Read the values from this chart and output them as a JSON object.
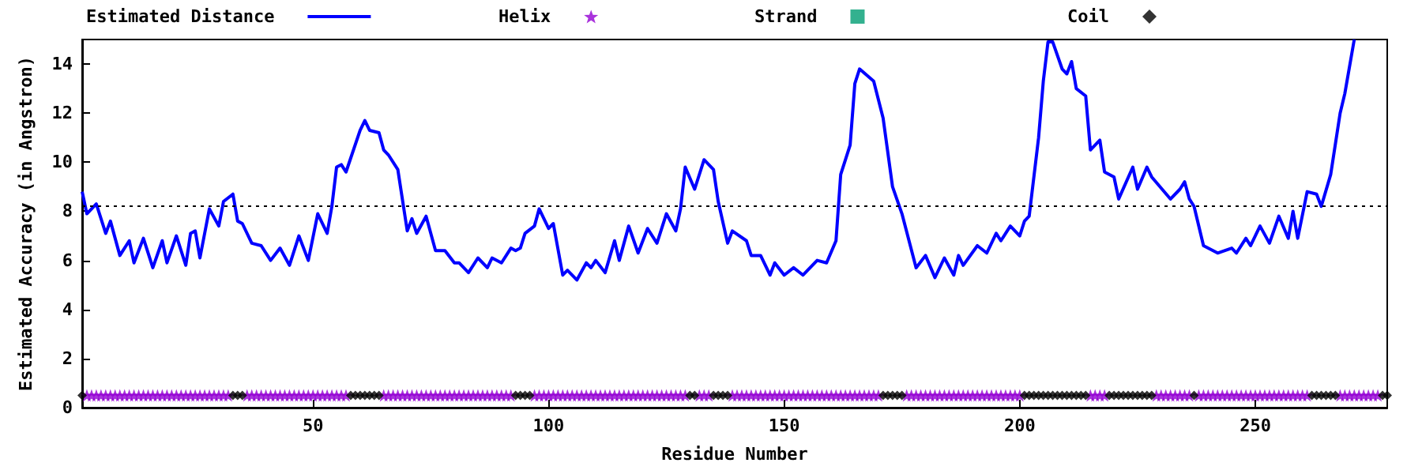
{
  "chart_data": {
    "type": "line",
    "xlabel": "Residue Number",
    "ylabel": "Estimated Accuracy (in Angstron)",
    "xlim": [
      1,
      278
    ],
    "xticks": [
      50,
      100,
      150,
      200,
      250
    ],
    "ylim": [
      0,
      15
    ],
    "yticks": [
      0,
      2,
      4,
      6,
      8,
      10,
      12,
      14
    ],
    "grid": false,
    "legend": "top",
    "marker": "none",
    "ref_lines": [
      {
        "axis": "y",
        "value": 8.2,
        "color": "#000000",
        "line_style": "dotted"
      }
    ],
    "series": [
      {
        "name": "Estimated Distance",
        "color": "#0000ff",
        "line_style": "solid",
        "x": [
          1,
          2,
          4,
          6,
          7,
          9,
          11,
          12,
          14,
          16,
          18,
          19,
          21,
          23,
          24,
          25,
          26,
          28,
          30,
          31,
          33,
          34,
          35,
          37,
          39,
          41,
          43,
          45,
          47,
          49,
          51,
          53,
          54,
          55,
          56,
          57,
          60,
          61,
          62,
          64,
          65,
          66,
          68,
          70,
          71,
          72,
          74,
          76,
          78,
          80,
          81,
          83,
          85,
          87,
          88,
          90,
          92,
          93,
          94,
          95,
          97,
          98,
          100,
          101,
          103,
          104,
          106,
          108,
          109,
          110,
          112,
          114,
          115,
          117,
          119,
          121,
          123,
          125,
          127,
          128,
          129,
          131,
          133,
          135,
          136,
          138,
          139,
          142,
          143,
          145,
          147,
          148,
          150,
          152,
          154,
          157,
          159,
          161,
          162,
          164,
          165,
          166,
          169,
          171,
          173,
          175,
          178,
          180,
          182,
          184,
          186,
          187,
          188,
          191,
          193,
          195,
          196,
          198,
          200,
          201,
          202,
          204,
          205,
          206,
          207,
          209,
          210,
          211,
          212,
          214,
          215,
          217,
          218,
          220,
          221,
          224,
          225,
          227,
          228,
          232,
          234,
          235,
          236,
          237,
          239,
          242,
          245,
          246,
          248,
          249,
          251,
          253,
          255,
          257,
          258,
          259,
          261,
          263,
          264,
          266,
          268,
          269,
          271
        ],
        "values": [
          8.8,
          7.9,
          8.3,
          7.1,
          7.6,
          6.2,
          6.8,
          5.9,
          6.9,
          5.7,
          6.8,
          5.9,
          7.0,
          5.8,
          7.1,
          7.2,
          6.1,
          8.1,
          7.4,
          8.4,
          8.7,
          7.6,
          7.5,
          6.7,
          6.6,
          6.0,
          6.5,
          5.8,
          7.0,
          6.0,
          7.9,
          7.1,
          8.2,
          9.8,
          9.9,
          9.6,
          11.3,
          11.7,
          11.3,
          11.2,
          10.5,
          10.3,
          9.7,
          7.2,
          7.7,
          7.1,
          7.8,
          6.4,
          6.4,
          5.9,
          5.9,
          5.5,
          6.1,
          5.7,
          6.1,
          5.9,
          6.5,
          6.4,
          6.5,
          7.1,
          7.4,
          8.1,
          7.3,
          7.5,
          5.4,
          5.6,
          5.2,
          5.9,
          5.7,
          6.0,
          5.5,
          6.8,
          6.0,
          7.4,
          6.3,
          7.3,
          6.7,
          7.9,
          7.2,
          8.1,
          9.8,
          8.9,
          10.1,
          9.7,
          8.4,
          6.7,
          7.2,
          6.8,
          6.2,
          6.2,
          5.4,
          5.9,
          5.4,
          5.7,
          5.4,
          6.0,
          5.9,
          6.8,
          9.5,
          10.7,
          13.2,
          13.8,
          13.3,
          11.8,
          9.0,
          7.9,
          5.7,
          6.2,
          5.3,
          6.1,
          5.4,
          6.2,
          5.8,
          6.6,
          6.3,
          7.1,
          6.8,
          7.4,
          7.0,
          7.6,
          7.8,
          11.0,
          13.3,
          14.9,
          14.9,
          13.8,
          13.6,
          14.1,
          13.0,
          12.7,
          10.5,
          10.9,
          9.6,
          9.4,
          8.5,
          9.8,
          8.9,
          9.8,
          9.4,
          8.5,
          8.9,
          9.2,
          8.5,
          8.2,
          6.6,
          6.3,
          6.5,
          6.3,
          6.9,
          6.6,
          7.4,
          6.7,
          7.8,
          6.9,
          8.0,
          6.9,
          8.8,
          8.7,
          8.2,
          9.5,
          12.0,
          12.8,
          15.0
        ]
      },
      {
        "name": "Helix",
        "type": "scatter",
        "color": "#9400d3",
        "marker": "star",
        "x": [
          2,
          3,
          4,
          5,
          6,
          7,
          8,
          9,
          10,
          11,
          12,
          13,
          14,
          15,
          16,
          17,
          18,
          19,
          20,
          21,
          22,
          23,
          24,
          25,
          26,
          27,
          28,
          29,
          30,
          31,
          32,
          36,
          37,
          38,
          39,
          40,
          41,
          42,
          43,
          44,
          45,
          46,
          47,
          48,
          49,
          50,
          51,
          52,
          53,
          54,
          55,
          56,
          57,
          65,
          66,
          67,
          68,
          69,
          70,
          71,
          72,
          73,
          74,
          75,
          76,
          77,
          78,
          79,
          80,
          81,
          82,
          83,
          84,
          85,
          86,
          87,
          88,
          89,
          90,
          91,
          92,
          97,
          98,
          99,
          100,
          101,
          102,
          103,
          104,
          105,
          106,
          107,
          108,
          109,
          110,
          111,
          112,
          113,
          114,
          115,
          116,
          117,
          118,
          119,
          120,
          121,
          122,
          123,
          124,
          125,
          126,
          127,
          128,
          129,
          132,
          133,
          134,
          139,
          140,
          141,
          142,
          143,
          144,
          145,
          146,
          147,
          148,
          149,
          150,
          151,
          152,
          153,
          154,
          155,
          156,
          157,
          158,
          159,
          160,
          161,
          162,
          163,
          164,
          165,
          166,
          167,
          168,
          169,
          170,
          176,
          177,
          178,
          179,
          180,
          181,
          182,
          183,
          184,
          185,
          186,
          187,
          188,
          189,
          190,
          191,
          192,
          193,
          194,
          195,
          196,
          197,
          198,
          199,
          200,
          215,
          216,
          217,
          218,
          229,
          230,
          231,
          232,
          233,
          234,
          235,
          236,
          238,
          239,
          240,
          241,
          242,
          243,
          244,
          245,
          246,
          247,
          248,
          249,
          250,
          251,
          252,
          253,
          254,
          255,
          256,
          257,
          258,
          259,
          260,
          261,
          268,
          269,
          270,
          271,
          272,
          273,
          274,
          275,
          276
        ],
        "values": [
          0.5,
          0.5,
          0.5,
          0.5,
          0.5,
          0.5,
          0.5,
          0.5,
          0.5,
          0.5,
          0.5,
          0.5,
          0.5,
          0.5,
          0.5,
          0.5,
          0.5,
          0.5,
          0.5,
          0.5,
          0.5,
          0.5,
          0.5,
          0.5,
          0.5,
          0.5,
          0.5,
          0.5,
          0.5,
          0.5,
          0.5,
          0.5,
          0.5,
          0.5,
          0.5,
          0.5,
          0.5,
          0.5,
          0.5,
          0.5,
          0.5,
          0.5,
          0.5,
          0.5,
          0.5,
          0.5,
          0.5,
          0.5,
          0.5,
          0.5,
          0.5,
          0.5,
          0.5,
          0.5,
          0.5,
          0.5,
          0.5,
          0.5,
          0.5,
          0.5,
          0.5,
          0.5,
          0.5,
          0.5,
          0.5,
          0.5,
          0.5,
          0.5,
          0.5,
          0.5,
          0.5,
          0.5,
          0.5,
          0.5,
          0.5,
          0.5,
          0.5,
          0.5,
          0.5,
          0.5,
          0.5,
          0.5,
          0.5,
          0.5,
          0.5,
          0.5,
          0.5,
          0.5,
          0.5,
          0.5,
          0.5,
          0.5,
          0.5,
          0.5,
          0.5,
          0.5,
          0.5,
          0.5,
          0.5,
          0.5,
          0.5,
          0.5,
          0.5,
          0.5,
          0.5,
          0.5,
          0.5,
          0.5,
          0.5,
          0.5,
          0.5,
          0.5,
          0.5,
          0.5,
          0.5,
          0.5,
          0.5,
          0.5,
          0.5,
          0.5,
          0.5,
          0.5,
          0.5,
          0.5,
          0.5,
          0.5,
          0.5,
          0.5,
          0.5,
          0.5,
          0.5,
          0.5,
          0.5,
          0.5,
          0.5,
          0.5,
          0.5,
          0.5,
          0.5,
          0.5,
          0.5,
          0.5,
          0.5,
          0.5,
          0.5,
          0.5,
          0.5,
          0.5,
          0.5,
          0.5,
          0.5,
          0.5,
          0.5,
          0.5,
          0.5,
          0.5,
          0.5,
          0.5,
          0.5,
          0.5,
          0.5,
          0.5,
          0.5,
          0.5,
          0.5,
          0.5,
          0.5,
          0.5,
          0.5,
          0.5,
          0.5,
          0.5,
          0.5,
          0.5,
          0.5,
          0.5,
          0.5,
          0.5,
          0.5,
          0.5,
          0.5,
          0.5,
          0.5,
          0.5,
          0.5,
          0.5,
          0.5,
          0.5,
          0.5,
          0.5,
          0.5,
          0.5,
          0.5,
          0.5,
          0.5,
          0.5,
          0.5,
          0.5,
          0.5,
          0.5,
          0.5,
          0.5,
          0.5,
          0.5,
          0.5,
          0.5,
          0.5,
          0.5,
          0.5,
          0.5,
          0.5,
          0.5,
          0.5,
          0.5,
          0.5,
          0.5,
          0.5,
          0.5,
          0.5
        ]
      },
      {
        "name": "Strand",
        "type": "scatter",
        "color": "#009e73",
        "marker": "square"
      },
      {
        "name": "Coil",
        "type": "scatter",
        "color": "#000000",
        "marker": "diamond",
        "x": [
          1,
          33,
          34,
          35,
          58,
          59,
          60,
          61,
          62,
          63,
          64,
          93,
          94,
          95,
          96,
          130,
          131,
          135,
          136,
          137,
          138,
          171,
          172,
          173,
          174,
          175,
          201,
          202,
          203,
          204,
          205,
          206,
          207,
          208,
          209,
          210,
          211,
          212,
          213,
          214,
          219,
          220,
          221,
          222,
          223,
          224,
          225,
          226,
          227,
          228,
          237,
          262,
          263,
          264,
          265,
          266,
          267,
          277,
          278
        ],
        "values": [
          0.5,
          0.5,
          0.5,
          0.5,
          0.5,
          0.5,
          0.5,
          0.5,
          0.5,
          0.5,
          0.5,
          0.5,
          0.5,
          0.5,
          0.5,
          0.5,
          0.5,
          0.5,
          0.5,
          0.5,
          0.5,
          0.5,
          0.5,
          0.5,
          0.5,
          0.5,
          0.5,
          0.5,
          0.5,
          0.5,
          0.5,
          0.5,
          0.5,
          0.5,
          0.5,
          0.5,
          0.5,
          0.5,
          0.5,
          0.5,
          0.5,
          0.5,
          0.5,
          0.5,
          0.5,
          0.5,
          0.5,
          0.5,
          0.5,
          0.5,
          0.5,
          0.5,
          0.5,
          0.5,
          0.5,
          0.5,
          0.5,
          0.5,
          0.5
        ]
      }
    ]
  }
}
